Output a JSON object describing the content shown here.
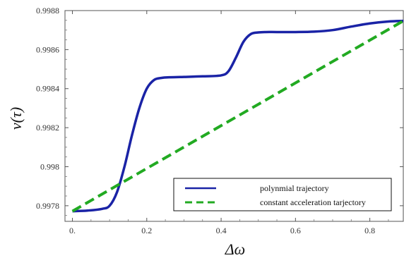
{
  "chart_data": {
    "type": "line",
    "title": "",
    "xlabel": "Δω",
    "ylabel": "v(τ)",
    "xlim": [
      -0.02,
      0.89
    ],
    "ylim": [
      0.99772,
      0.9988
    ],
    "x_ticks": [
      0,
      0.2,
      0.4,
      0.6,
      0.8
    ],
    "x_tick_labels": [
      "0.",
      "0.2",
      "0.4",
      "0.6",
      "0.8"
    ],
    "y_ticks": [
      0.9978,
      0.998,
      0.9982,
      0.9984,
      0.9986,
      0.9988
    ],
    "y_tick_labels": [
      "0.9978",
      "0.998",
      "0.9982",
      "0.9984",
      "0.9986",
      "0.9988"
    ],
    "grid": false,
    "legend_position": "bottom-right",
    "series": [
      {
        "name": "polynmial trajectory",
        "color": "#1a23a6",
        "style": "solid",
        "x": [
          0,
          0.04,
          0.08,
          0.1,
          0.12,
          0.14,
          0.16,
          0.18,
          0.2,
          0.22,
          0.24,
          0.26,
          0.3,
          0.35,
          0.4,
          0.42,
          0.44,
          0.46,
          0.48,
          0.5,
          0.52,
          0.55,
          0.6,
          0.65,
          0.7,
          0.75,
          0.8,
          0.85,
          0.89
        ],
        "y": [
          0.997772,
          0.997775,
          0.997784,
          0.9978,
          0.99787,
          0.998,
          0.99816,
          0.9983,
          0.9984,
          0.998445,
          0.998455,
          0.998458,
          0.99846,
          0.998463,
          0.998468,
          0.99849,
          0.99856,
          0.99864,
          0.99868,
          0.998688,
          0.99869,
          0.99869,
          0.99869,
          0.998692,
          0.9987,
          0.998718,
          0.998734,
          0.998744,
          0.998747
        ]
      },
      {
        "name": "constant acceleration tarjectory",
        "color": "#22aa22",
        "style": "dashed",
        "x": [
          0,
          0.89
        ],
        "y": [
          0.997772,
          0.998747
        ]
      }
    ]
  }
}
